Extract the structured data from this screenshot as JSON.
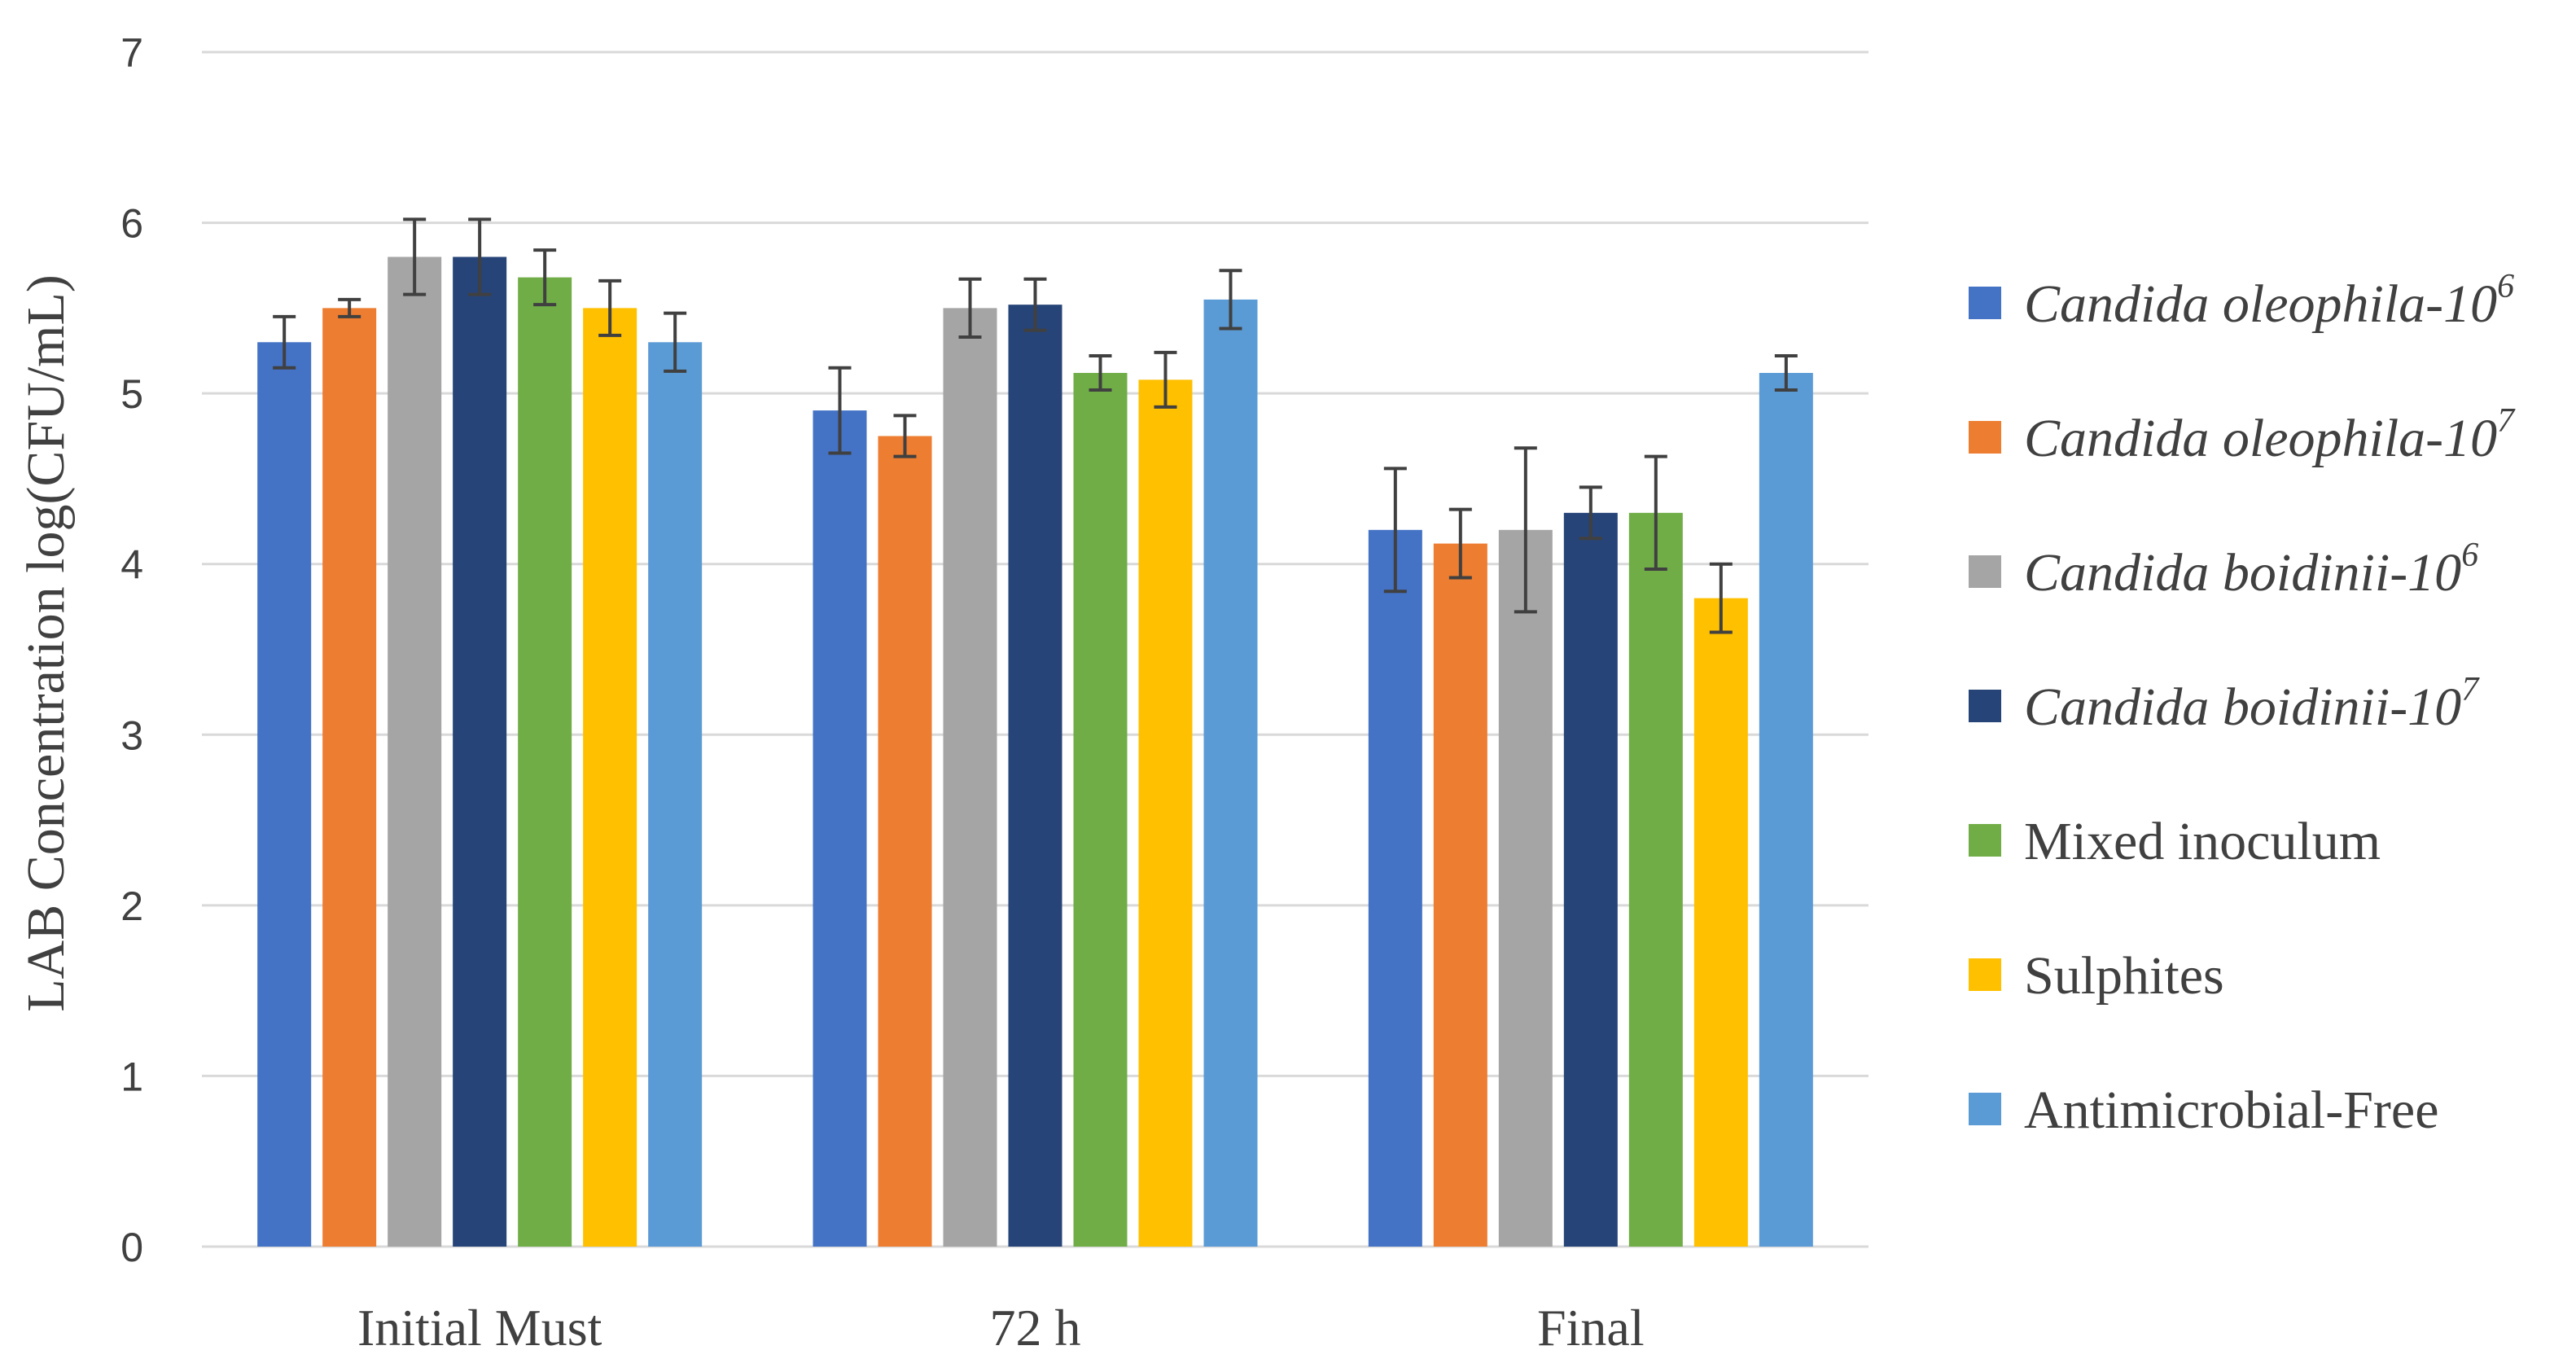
{
  "chart_data": {
    "type": "bar",
    "ylabel": "LAB Concentration log(CFU/mL)",
    "xlabel": "",
    "ylim": [
      0,
      7
    ],
    "yticks": [
      0,
      1,
      2,
      3,
      4,
      5,
      6,
      7
    ],
    "grid": true,
    "legend_position": "right",
    "categories": [
      "Initial Must",
      "72 h",
      "Final"
    ],
    "series": [
      {
        "name": "Candida oleophila-10",
        "exponent": "6",
        "italic": true,
        "color": "#4472C4",
        "values": [
          5.3,
          4.9,
          4.2
        ],
        "errors": [
          0.15,
          0.25,
          0.36
        ]
      },
      {
        "name": "Candida oleophila-10",
        "exponent": "7",
        "italic": true,
        "color": "#ED7D31",
        "values": [
          5.5,
          4.75,
          4.12
        ],
        "errors": [
          0.05,
          0.12,
          0.2
        ]
      },
      {
        "name": "Candida boidinii-10",
        "exponent": "6",
        "italic": true,
        "color": "#A5A5A5",
        "values": [
          5.8,
          5.5,
          4.2
        ],
        "errors": [
          0.22,
          0.17,
          0.48
        ]
      },
      {
        "name": "Candida boidinii-10",
        "exponent": "7",
        "italic": true,
        "color": "#264478",
        "values": [
          5.8,
          5.52,
          4.3
        ],
        "errors": [
          0.22,
          0.15,
          0.15
        ]
      },
      {
        "name": "Mixed inoculum",
        "exponent": "",
        "italic": false,
        "color": "#70AD47",
        "values": [
          5.68,
          5.12,
          4.3
        ],
        "errors": [
          0.16,
          0.1,
          0.33
        ]
      },
      {
        "name": "Sulphites",
        "exponent": "",
        "italic": false,
        "color": "#FFC000",
        "values": [
          5.5,
          5.08,
          3.8
        ],
        "errors": [
          0.16,
          0.16,
          0.2
        ]
      },
      {
        "name": "Antimicrobial-Free",
        "exponent": "",
        "italic": false,
        "color": "#5B9BD5",
        "values": [
          5.3,
          5.55,
          5.12
        ],
        "errors": [
          0.17,
          0.17,
          0.1
        ]
      }
    ]
  }
}
